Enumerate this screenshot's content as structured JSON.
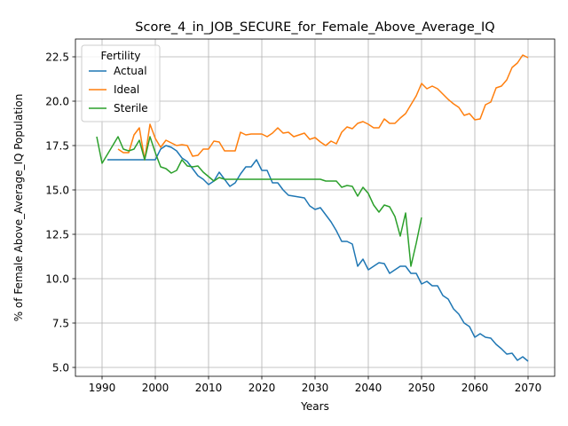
{
  "chart_data": {
    "type": "line",
    "title": "Score_4_in_JOB_SECURE_for_Female_Above_Average_IQ",
    "xlabel": "Years",
    "ylabel": "% of Female Above_Average_IQ Population",
    "xlim": [
      1985,
      2075
    ],
    "ylim": [
      4.5,
      23.5
    ],
    "xticks": [
      1990,
      2000,
      2010,
      2020,
      2030,
      2040,
      2050,
      2060,
      2070
    ],
    "yticks": [
      5.0,
      7.5,
      10.0,
      12.5,
      15.0,
      17.5,
      20.0,
      22.5
    ],
    "ytick_labels": [
      "5.0",
      "7.5",
      "10.0",
      "12.5",
      "15.0",
      "17.5",
      "20.0",
      "22.5"
    ],
    "grid": true,
    "legend": {
      "title": "Fertility",
      "placement": "top-left"
    },
    "series": [
      {
        "name": "Actual",
        "color": "#1f77b4",
        "x": [
          1991,
          1992,
          1993,
          1994,
          1995,
          1996,
          1997,
          1998,
          1999,
          2000,
          2001,
          2002,
          2003,
          2004,
          2005,
          2006,
          2007,
          2008,
          2009,
          2010,
          2011,
          2012,
          2013,
          2014,
          2015,
          2016,
          2017,
          2018,
          2019,
          2020,
          2021,
          2022,
          2023,
          2024,
          2025,
          2026,
          2027,
          2028,
          2029,
          2030,
          2031,
          2032,
          2033,
          2034,
          2035,
          2036,
          2037,
          2038,
          2039,
          2040,
          2041,
          2042,
          2043,
          2044,
          2045,
          2046,
          2047,
          2048,
          2049,
          2050,
          2051,
          2052,
          2053,
          2054,
          2055,
          2056,
          2057,
          2058,
          2059,
          2060,
          2061,
          2062,
          2063,
          2064,
          2065,
          2066,
          2067,
          2068,
          2069,
          2070
        ],
        "y": [
          16.7,
          16.7,
          16.7,
          16.7,
          16.7,
          16.7,
          16.7,
          16.7,
          16.7,
          16.7,
          17.3,
          17.5,
          17.4,
          17.2,
          16.8,
          16.6,
          16.2,
          15.8,
          15.6,
          15.3,
          15.5,
          16.0,
          15.6,
          15.2,
          15.4,
          15.9,
          16.3,
          16.3,
          16.7,
          16.1,
          16.1,
          15.4,
          15.4,
          15.0,
          14.7,
          14.65,
          14.6,
          14.55,
          14.1,
          13.9,
          14.0,
          13.6,
          13.2,
          12.7,
          12.1,
          12.1,
          11.95,
          10.7,
          11.1,
          10.5,
          10.7,
          10.9,
          10.85,
          10.3,
          10.5,
          10.7,
          10.7,
          10.3,
          10.3,
          9.7,
          9.85,
          9.6,
          9.6,
          9.05,
          8.85,
          8.3,
          8.0,
          7.5,
          7.3,
          6.7,
          6.9,
          6.7,
          6.65,
          6.3,
          6.05,
          5.75,
          5.8,
          5.4,
          5.6,
          5.35
        ]
      },
      {
        "name": "Ideal",
        "color": "#ff7f0e",
        "x": [
          1993,
          1994,
          1995,
          1996,
          1997,
          1998,
          1999,
          2000,
          2001,
          2002,
          2003,
          2004,
          2005,
          2006,
          2007,
          2008,
          2009,
          2010,
          2011,
          2012,
          2013,
          2014,
          2015,
          2016,
          2017,
          2018,
          2019,
          2020,
          2021,
          2022,
          2023,
          2024,
          2025,
          2026,
          2027,
          2028,
          2029,
          2030,
          2031,
          2032,
          2033,
          2034,
          2035,
          2036,
          2037,
          2038,
          2039,
          2040,
          2041,
          2042,
          2043,
          2044,
          2045,
          2046,
          2047,
          2048,
          2049,
          2050,
          2051,
          2052,
          2053,
          2054,
          2055,
          2056,
          2057,
          2058,
          2059,
          2060,
          2061,
          2062,
          2063,
          2064,
          2065,
          2066,
          2067,
          2068,
          2069,
          2070
        ],
        "y": [
          17.3,
          17.1,
          17.1,
          18.1,
          18.5,
          16.7,
          18.7,
          17.9,
          17.4,
          17.8,
          17.65,
          17.5,
          17.55,
          17.5,
          16.9,
          16.95,
          17.3,
          17.3,
          17.75,
          17.7,
          17.2,
          17.2,
          17.2,
          18.25,
          18.1,
          18.15,
          18.15,
          18.15,
          18.0,
          18.2,
          18.5,
          18.2,
          18.25,
          18.0,
          18.1,
          18.2,
          17.85,
          17.95,
          17.7,
          17.5,
          17.75,
          17.6,
          18.25,
          18.55,
          18.45,
          18.75,
          18.85,
          18.7,
          18.5,
          18.5,
          19.0,
          18.75,
          18.75,
          19.05,
          19.3,
          19.8,
          20.3,
          21.0,
          20.7,
          20.85,
          20.7,
          20.4,
          20.1,
          19.85,
          19.65,
          19.2,
          19.3,
          18.95,
          19.0,
          19.8,
          19.95,
          20.75,
          20.85,
          21.2,
          21.9,
          22.15,
          22.6,
          22.45
        ]
      },
      {
        "name": "Sterile",
        "color": "#2ca02c",
        "x": [
          1989,
          1990,
          1991,
          1992,
          1993,
          1994,
          1995,
          1996,
          1997,
          1998,
          1999,
          2000,
          2001,
          2002,
          2003,
          2004,
          2005,
          2006,
          2007,
          2008,
          2009,
          2010,
          2011,
          2012,
          2013,
          2014,
          2015,
          2016,
          2017,
          2018,
          2019,
          2020,
          2021,
          2022,
          2023,
          2024,
          2025,
          2026,
          2027,
          2028,
          2029,
          2030,
          2031,
          2032,
          2033,
          2034,
          2035,
          2036,
          2037,
          2038,
          2039,
          2040,
          2041,
          2042,
          2043,
          2044,
          2045,
          2046,
          2047,
          2048,
          2049,
          2050
        ],
        "y": [
          18.0,
          16.5,
          17.0,
          17.5,
          18.0,
          17.3,
          17.2,
          17.3,
          17.8,
          16.7,
          18.0,
          17.1,
          16.3,
          16.2,
          15.95,
          16.1,
          16.7,
          16.35,
          16.3,
          16.35,
          16.0,
          15.75,
          15.5,
          15.7,
          15.6,
          15.6,
          15.6,
          15.6,
          15.6,
          15.6,
          15.6,
          15.6,
          15.6,
          15.6,
          15.6,
          15.6,
          15.6,
          15.6,
          15.6,
          15.6,
          15.6,
          15.6,
          15.6,
          15.5,
          15.5,
          15.5,
          15.15,
          15.25,
          15.2,
          14.65,
          15.15,
          14.8,
          14.15,
          13.75,
          14.15,
          14.05,
          13.5,
          12.4,
          13.7,
          10.7,
          12.0,
          13.45
        ]
      }
    ]
  }
}
